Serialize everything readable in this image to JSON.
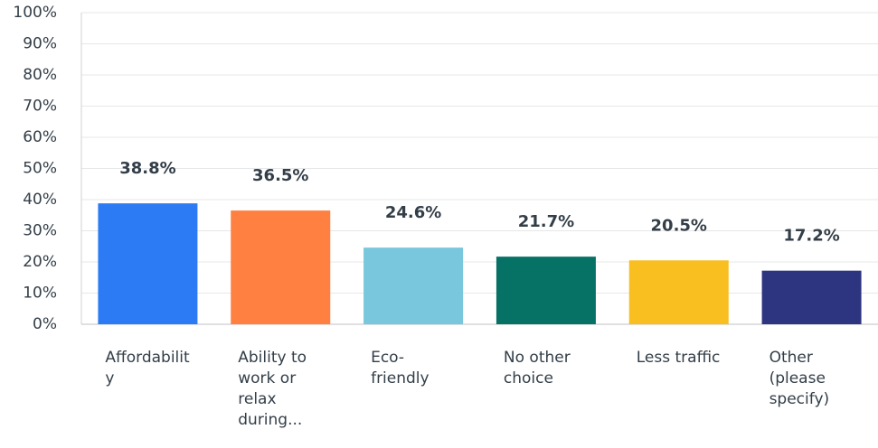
{
  "chart_data": {
    "type": "bar",
    "categories": [
      "Affordability",
      "Ability to work or relax during...",
      "Eco-friendly",
      "No other choice",
      "Less traffic",
      "Other (please specify)"
    ],
    "values": [
      38.8,
      36.5,
      24.6,
      21.7,
      20.5,
      17.2
    ],
    "value_labels": [
      "38.8%",
      "36.5%",
      "24.6%",
      "21.7%",
      "20.5%",
      "17.2%"
    ],
    "colors": [
      "#2d7bf4",
      "#ff8040",
      "#78c7dd",
      "#067165",
      "#f9be1f",
      "#2d3580"
    ],
    "ylim": [
      0,
      100
    ],
    "yticks": [
      {
        "value": 0,
        "label": "0%"
      },
      {
        "value": 10,
        "label": "10%"
      },
      {
        "value": 20,
        "label": "20%"
      },
      {
        "value": 30,
        "label": "30%"
      },
      {
        "value": 40,
        "label": "40%"
      },
      {
        "value": 50,
        "label": "50%"
      },
      {
        "value": 60,
        "label": "60%"
      },
      {
        "value": 70,
        "label": "70%"
      },
      {
        "value": 80,
        "label": "80%"
      },
      {
        "value": 90,
        "label": "90%"
      },
      {
        "value": 100,
        "label": "100%"
      }
    ],
    "grid": true
  }
}
